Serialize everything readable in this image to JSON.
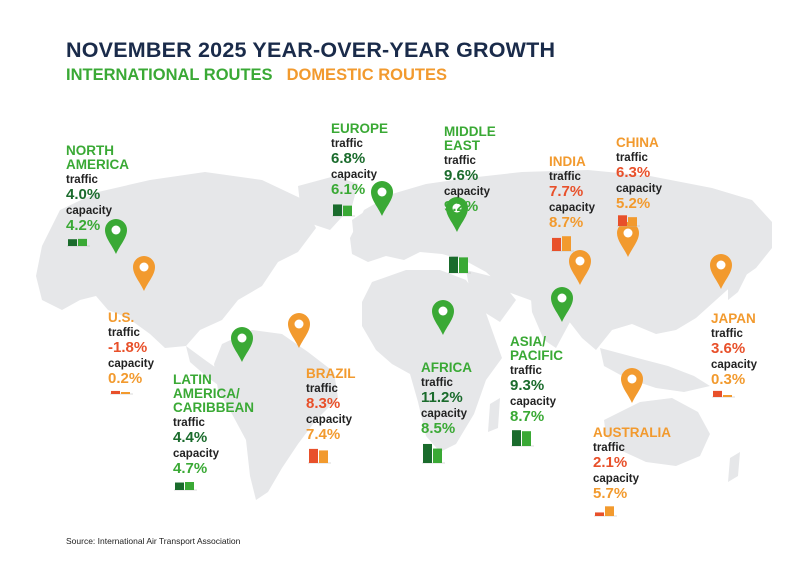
{
  "title": "NOVEMBER 2025 YEAR-OVER-YEAR GROWTH",
  "legend": {
    "international": "INTERNATIONAL ROUTES",
    "domestic": "DOMESTIC ROUTES"
  },
  "colors": {
    "international": "#3aa935",
    "international_dark": "#1a6b2c",
    "domestic": "#f29a2e",
    "domestic_dark": "#e8502a",
    "title": "#1a2b4a",
    "map_land": "#e6e7e9"
  },
  "labels": {
    "traffic": "traffic",
    "capacity": "capacity"
  },
  "regions": [
    {
      "id": "north-america",
      "name_lines": [
        "NORTH",
        "AMERICA"
      ],
      "kind": "international",
      "traffic": "4.0%",
      "capacity": "4.2%",
      "traffic_value": 4.0,
      "capacity_value": 4.2,
      "marker_icon": "map-pin-icon"
    },
    {
      "id": "europe",
      "name_lines": [
        "EUROPE"
      ],
      "kind": "international",
      "traffic": "6.8%",
      "capacity": "6.1%",
      "traffic_value": 6.8,
      "capacity_value": 6.1,
      "marker_icon": "map-pin-icon"
    },
    {
      "id": "middle-east",
      "name_lines": [
        "MIDDLE",
        "EAST"
      ],
      "kind": "international",
      "traffic": "9.6%",
      "capacity": "9.2%",
      "traffic_value": 9.6,
      "capacity_value": 9.2,
      "marker_icon": "map-pin-icon"
    },
    {
      "id": "india",
      "name_lines": [
        "INDIA"
      ],
      "kind": "domestic",
      "traffic": "7.7%",
      "capacity": "8.7%",
      "traffic_value": 7.7,
      "capacity_value": 8.7,
      "marker_icon": "map-pin-icon"
    },
    {
      "id": "china",
      "name_lines": [
        "CHINA"
      ],
      "kind": "domestic",
      "traffic": "6.3%",
      "capacity": "5.2%",
      "traffic_value": 6.3,
      "capacity_value": 5.2,
      "marker_icon": "map-pin-icon"
    },
    {
      "id": "us",
      "name_lines": [
        "U.S."
      ],
      "kind": "domestic",
      "traffic": "-1.8%",
      "capacity": "0.2%",
      "traffic_value": -1.8,
      "capacity_value": 0.2,
      "marker_icon": "map-pin-icon"
    },
    {
      "id": "latin-america",
      "name_lines": [
        "LATIN",
        "AMERICA/",
        "CARIBBEAN"
      ],
      "kind": "international",
      "traffic": "4.4%",
      "capacity": "4.7%",
      "traffic_value": 4.4,
      "capacity_value": 4.7,
      "marker_icon": "map-pin-icon"
    },
    {
      "id": "brazil",
      "name_lines": [
        "BRAZIL"
      ],
      "kind": "domestic",
      "traffic": "8.3%",
      "capacity": "7.4%",
      "traffic_value": 8.3,
      "capacity_value": 7.4,
      "marker_icon": "map-pin-icon"
    },
    {
      "id": "africa",
      "name_lines": [
        "AFRICA"
      ],
      "kind": "international",
      "traffic": "11.2%",
      "capacity": "8.5%",
      "traffic_value": 11.2,
      "capacity_value": 8.5,
      "marker_icon": "map-pin-icon"
    },
    {
      "id": "asia-pacific",
      "name_lines": [
        "ASIA/",
        "PACIFIC"
      ],
      "kind": "international",
      "traffic": "9.3%",
      "capacity": "8.7%",
      "traffic_value": 9.3,
      "capacity_value": 8.7,
      "marker_icon": "map-pin-icon"
    },
    {
      "id": "japan",
      "name_lines": [
        "JAPAN"
      ],
      "kind": "domestic",
      "traffic": "3.6%",
      "capacity": "0.3%",
      "traffic_value": 3.6,
      "capacity_value": 0.3,
      "marker_icon": "map-pin-icon"
    },
    {
      "id": "australia",
      "name_lines": [
        "AUSTRALIA"
      ],
      "kind": "domestic",
      "traffic": "2.1%",
      "capacity": "5.7%",
      "traffic_value": 2.1,
      "capacity_value": 5.7,
      "marker_icon": "map-pin-icon"
    }
  ],
  "source": "Source: International Air Transport Association"
}
